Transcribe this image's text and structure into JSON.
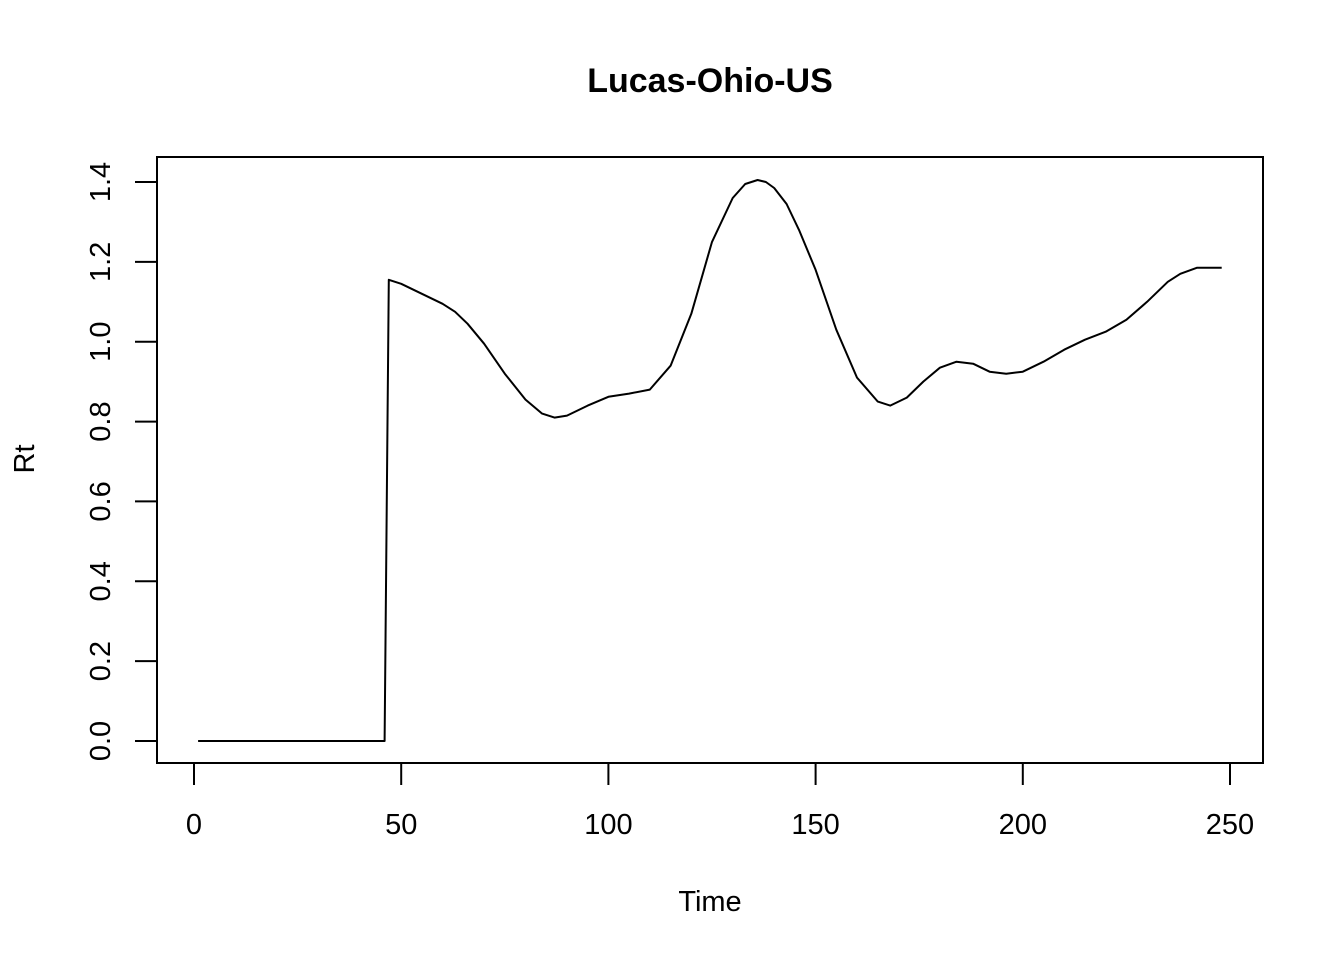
{
  "chart_data": {
    "type": "line",
    "title": "Lucas-Ohio-US",
    "xlabel": "Time",
    "ylabel": "Rt",
    "xlim": [
      1,
      248
    ],
    "ylim": [
      0,
      1.4
    ],
    "xticks": [
      "0",
      "50",
      "100",
      "150",
      "200",
      "250"
    ],
    "yticks": [
      "0.0",
      "0.2",
      "0.4",
      "0.6",
      "0.8",
      "1.0",
      "1.2",
      "1.4"
    ],
    "grid": false,
    "legend": "none",
    "line_color": "#000000",
    "series": [
      {
        "x": [
          1,
          10,
          20,
          30,
          40,
          46,
          47,
          50,
          55,
          60,
          63,
          66,
          70,
          75,
          80,
          84,
          87,
          90,
          95,
          100,
          105,
          110,
          115,
          120,
          125,
          130,
          133,
          136,
          138,
          140,
          143,
          146,
          150,
          155,
          160,
          165,
          168,
          172,
          176,
          180,
          184,
          188,
          192,
          196,
          200,
          205,
          210,
          215,
          220,
          225,
          230,
          235,
          238,
          242,
          245,
          248
        ],
        "y": [
          0,
          0,
          0,
          0,
          0,
          0,
          1.155,
          1.145,
          1.12,
          1.095,
          1.075,
          1.045,
          0.995,
          0.92,
          0.855,
          0.82,
          0.81,
          0.815,
          0.84,
          0.862,
          0.87,
          0.88,
          0.94,
          1.07,
          1.25,
          1.36,
          1.395,
          1.405,
          1.4,
          1.385,
          1.345,
          1.28,
          1.18,
          1.03,
          0.91,
          0.85,
          0.84,
          0.86,
          0.9,
          0.935,
          0.95,
          0.945,
          0.925,
          0.92,
          0.925,
          0.95,
          0.98,
          1.005,
          1.025,
          1.055,
          1.1,
          1.15,
          1.17,
          1.185,
          1.185,
          1.185
        ]
      }
    ]
  }
}
